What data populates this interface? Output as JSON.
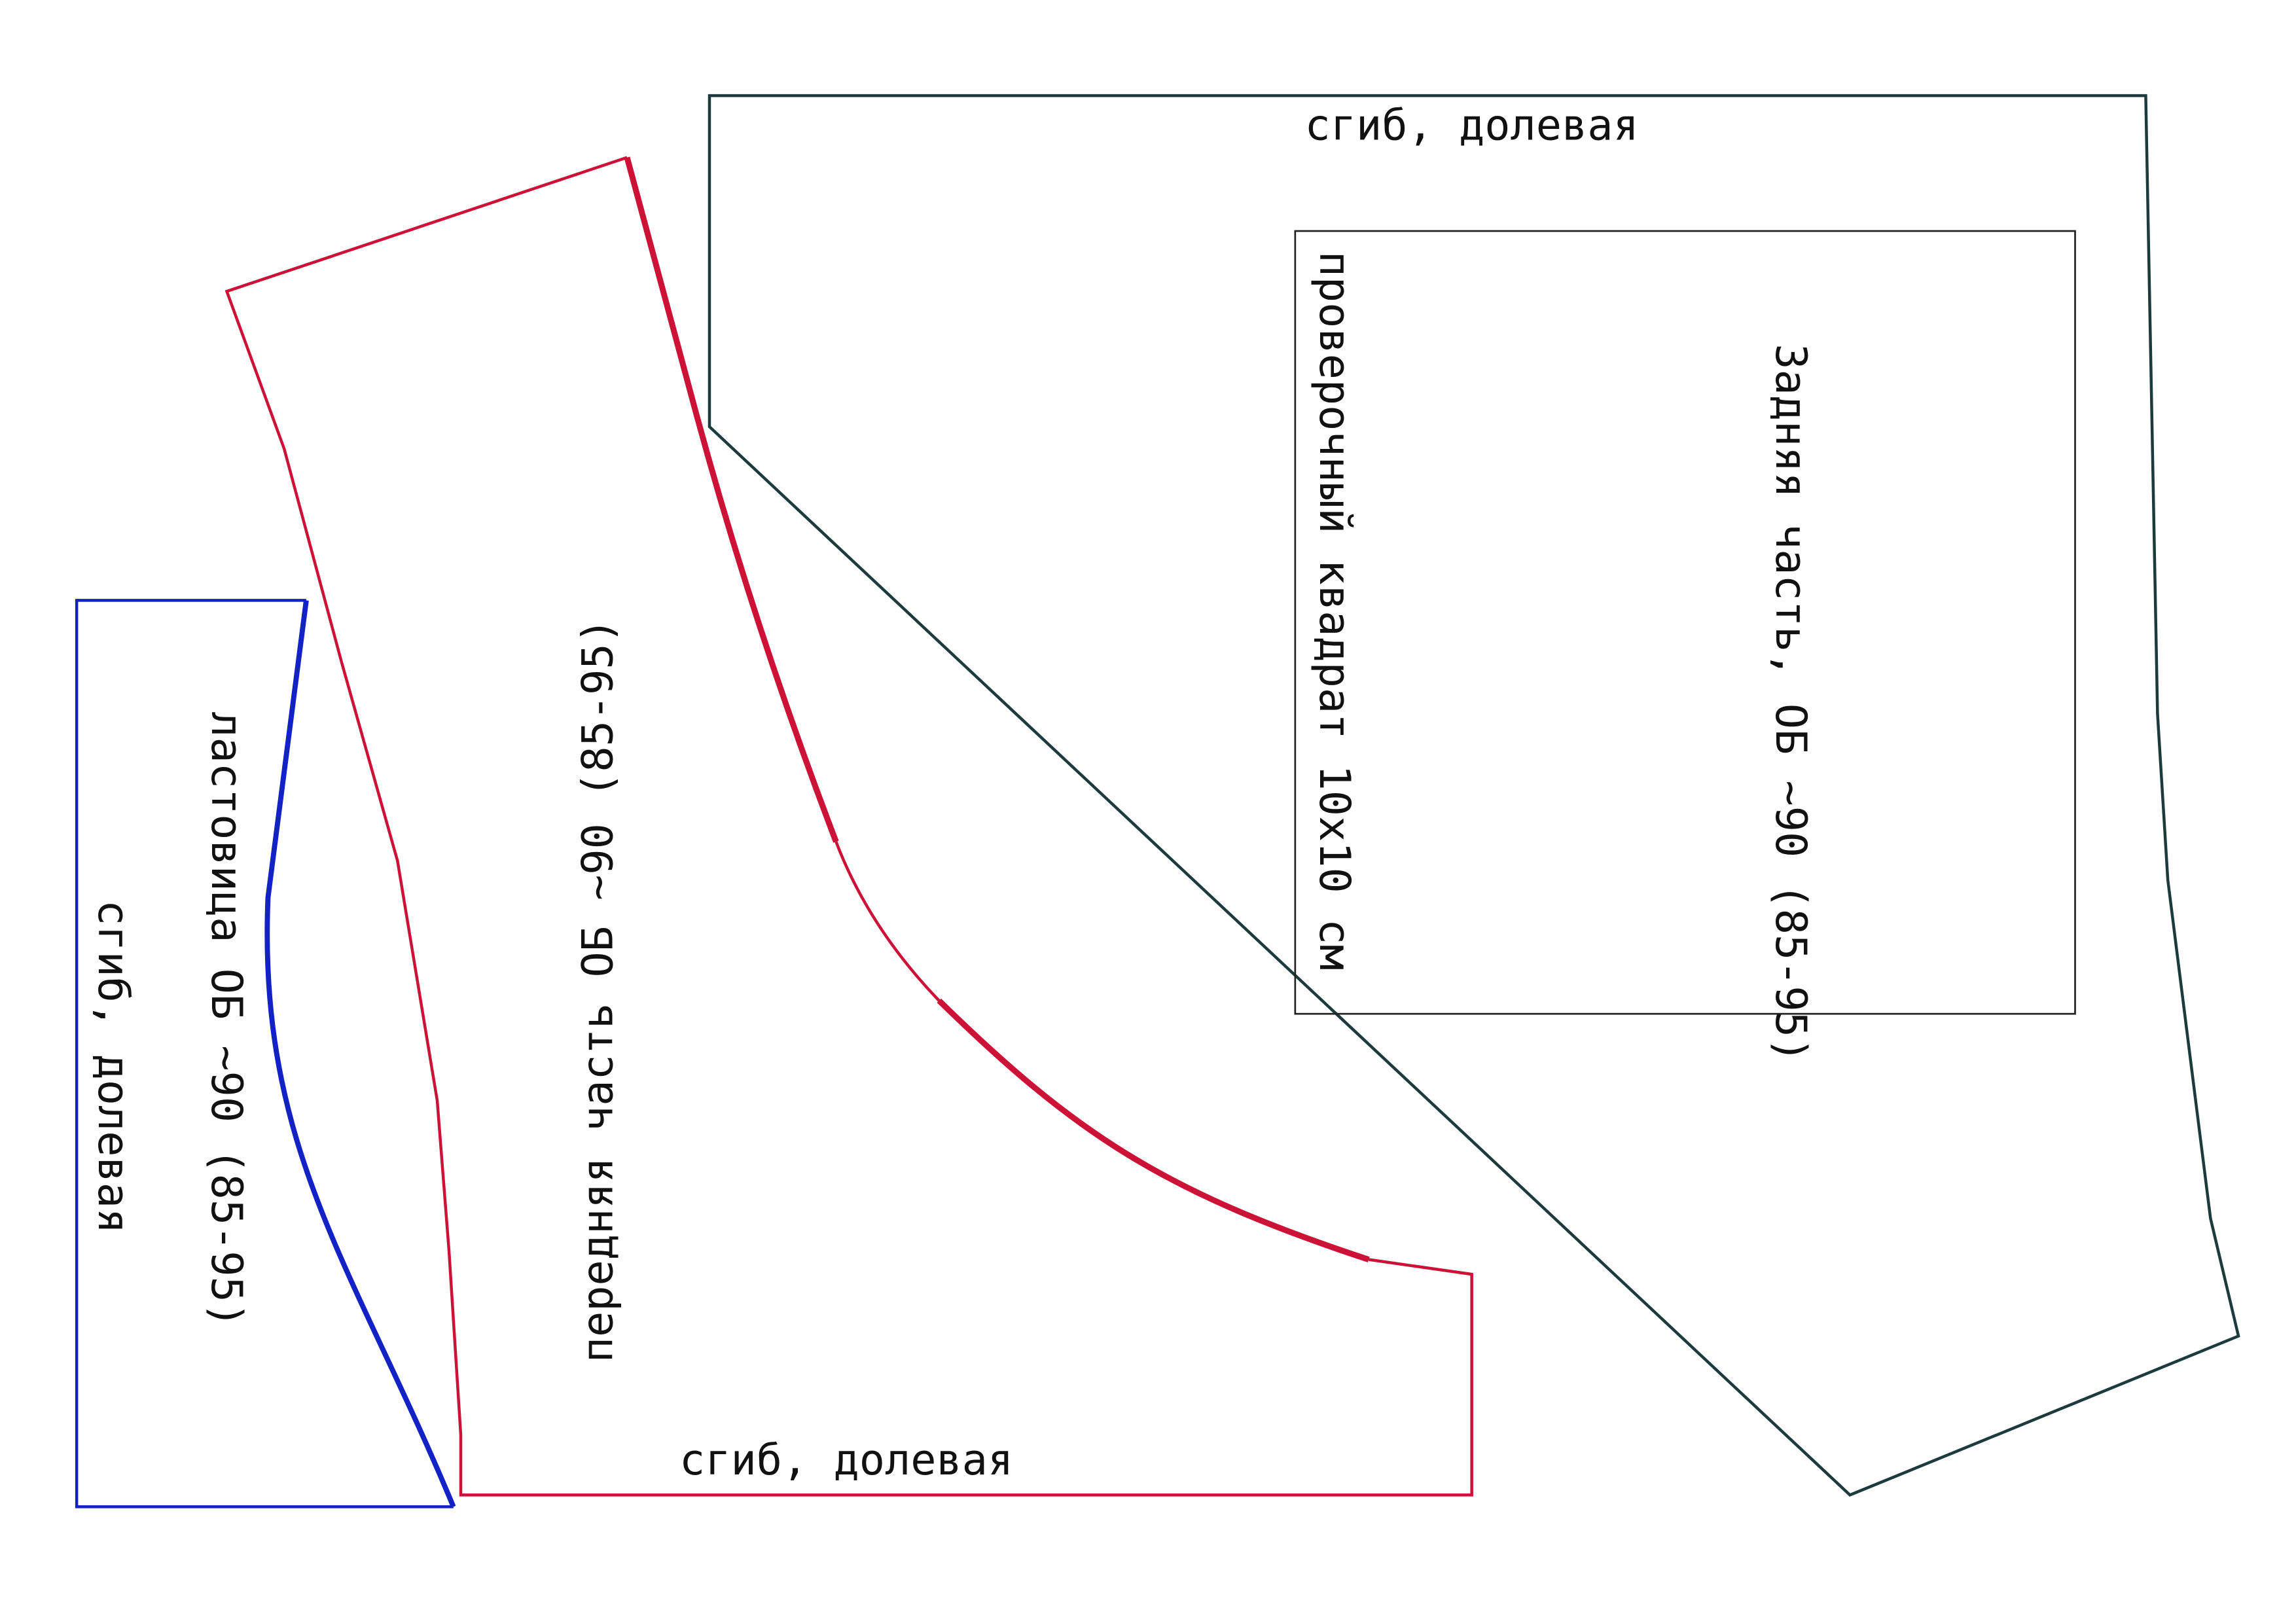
{
  "back": {
    "title": "Задняя часть, ОБ ~90 (85-95)",
    "fold_label": "сгиб, долевая"
  },
  "check_square": {
    "label": "проверочный квадрат 10х10 см"
  },
  "front": {
    "title": "передняя часть ОБ ~90 (85-95)",
    "fold_label": "сгиб, долевая"
  },
  "gusset": {
    "title": "ластовица ОБ ~90 (85-95)",
    "fold_label": "сгиб, долевая"
  }
}
